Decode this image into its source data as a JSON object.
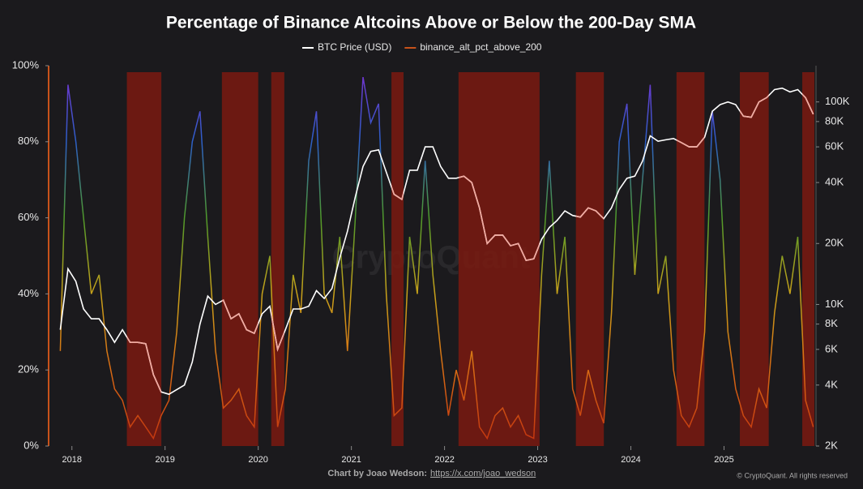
{
  "chart_data": {
    "type": "line",
    "title": "Percentage of Binance Altcoins Above or Below the 200-Day SMA",
    "footer": "Chart by Joao Wedson:",
    "footer_link": "https://x.com/joao_wedson",
    "copyright": "© CryptoQuant. All rights reserved",
    "watermark": "CryptoQuant",
    "legend": "top",
    "x": [
      2017.875,
      2017.958,
      2018.042,
      2018.125,
      2018.208,
      2018.292,
      2018.375,
      2018.458,
      2018.542,
      2018.625,
      2018.708,
      2018.792,
      2018.875,
      2018.958,
      2019.042,
      2019.125,
      2019.208,
      2019.292,
      2019.375,
      2019.458,
      2019.542,
      2019.625,
      2019.708,
      2019.792,
      2019.875,
      2019.958,
      2020.042,
      2020.125,
      2020.208,
      2020.292,
      2020.375,
      2020.458,
      2020.542,
      2020.625,
      2020.708,
      2020.792,
      2020.875,
      2020.958,
      2021.042,
      2021.125,
      2021.208,
      2021.292,
      2021.375,
      2021.458,
      2021.542,
      2021.625,
      2021.708,
      2021.792,
      2021.875,
      2021.958,
      2022.042,
      2022.125,
      2022.208,
      2022.292,
      2022.375,
      2022.458,
      2022.542,
      2022.625,
      2022.708,
      2022.792,
      2022.875,
      2022.958,
      2023.042,
      2023.125,
      2023.208,
      2023.292,
      2023.375,
      2023.458,
      2023.542,
      2023.625,
      2023.708,
      2023.792,
      2023.875,
      2023.958,
      2024.042,
      2024.125,
      2024.208,
      2024.292,
      2024.375,
      2024.458,
      2024.542,
      2024.625,
      2024.708,
      2024.792,
      2024.875,
      2024.958,
      2025.042,
      2025.125,
      2025.208,
      2025.292,
      2025.375,
      2025.458,
      2025.542,
      2025.625,
      2025.708,
      2025.792,
      2025.875,
      2025.958
    ],
    "series": [
      {
        "name": "BTC Price (USD)",
        "color": "#ffffff",
        "shaded_color": "#f2aaa0",
        "axis": "y2",
        "values": [
          7500,
          15000,
          13000,
          9500,
          8500,
          8500,
          7500,
          6500,
          7500,
          6500,
          6500,
          6400,
          4500,
          3700,
          3600,
          3800,
          4000,
          5200,
          8000,
          11000,
          10000,
          10500,
          8500,
          9000,
          7500,
          7200,
          9000,
          9800,
          6000,
          7500,
          9500,
          9500,
          9800,
          11700,
          10700,
          12000,
          17000,
          23000,
          34000,
          48000,
          57000,
          58000,
          45000,
          35000,
          33000,
          46000,
          46000,
          60000,
          60000,
          48000,
          42000,
          42000,
          43000,
          40000,
          30000,
          20000,
          22000,
          22000,
          19500,
          20000,
          16500,
          16800,
          21000,
          24000,
          26000,
          29000,
          27500,
          27000,
          30000,
          29000,
          26500,
          30000,
          37000,
          42000,
          43000,
          51000,
          68000,
          64000,
          65000,
          66000,
          63000,
          60000,
          60000,
          67000,
          90000,
          97000,
          100000,
          97000,
          85000,
          84000,
          100000,
          105000,
          115000,
          117000,
          112000,
          115000,
          105000,
          87000
        ]
      },
      {
        "name": "binance_alt_pct_above_200",
        "color": "#c8521a",
        "colorscale": [
          "#c2320f",
          "#d86a14",
          "#c9a21a",
          "#4f9a2a",
          "#2d5fc9",
          "#7a2fd0"
        ],
        "values": [
          25,
          95,
          80,
          60,
          40,
          45,
          25,
          15,
          12,
          5,
          8,
          5,
          2,
          8,
          12,
          30,
          60,
          80,
          88,
          55,
          25,
          10,
          12,
          15,
          8,
          5,
          40,
          50,
          5,
          15,
          45,
          35,
          75,
          88,
          40,
          35,
          55,
          25,
          60,
          97,
          85,
          90,
          40,
          8,
          10,
          55,
          40,
          75,
          45,
          25,
          8,
          20,
          12,
          25,
          5,
          2,
          8,
          10,
          5,
          8,
          3,
          2,
          45,
          75,
          40,
          55,
          15,
          8,
          20,
          12,
          6,
          35,
          80,
          90,
          45,
          70,
          95,
          40,
          50,
          20,
          8,
          5,
          10,
          30,
          88,
          70,
          30,
          15,
          8,
          5,
          15,
          10,
          35,
          50,
          40,
          55,
          12,
          5
        ]
      }
    ],
    "shaded_ranges": [
      [
        2018.59,
        2018.96
      ],
      [
        2019.61,
        2020.0
      ],
      [
        2020.14,
        2020.28
      ],
      [
        2021.43,
        2021.56
      ],
      [
        2022.15,
        2023.02
      ],
      [
        2023.41,
        2023.71
      ],
      [
        2024.49,
        2024.79
      ],
      [
        2025.17,
        2025.48
      ],
      [
        2025.84,
        2025.97
      ]
    ],
    "shade_color": "#7a1a10",
    "xlim": [
      2017.75,
      2025.97
    ],
    "xticks": [
      2018,
      2019,
      2020,
      2021,
      2022,
      2023,
      2024,
      2025
    ],
    "ylim": [
      0,
      100
    ],
    "yticks": [
      {
        "value": 0,
        "label": "0%"
      },
      {
        "value": 20,
        "label": "20%"
      },
      {
        "value": 40,
        "label": "40%"
      },
      {
        "value": 60,
        "label": "60%"
      },
      {
        "value": 80,
        "label": "80%"
      },
      {
        "value": 100,
        "label": "100%"
      }
    ],
    "y2log": true,
    "y2lim": [
      2000,
      151000
    ],
    "y2ticks": [
      {
        "value": 2000,
        "label": "2K"
      },
      {
        "value": 4000,
        "label": "4K"
      },
      {
        "value": 6000,
        "label": "6K"
      },
      {
        "value": 8000,
        "label": "8K"
      },
      {
        "value": 10000,
        "label": "10K"
      },
      {
        "value": 20000,
        "label": "20K"
      },
      {
        "value": 40000,
        "label": "40K"
      },
      {
        "value": 60000,
        "label": "60K"
      },
      {
        "value": 80000,
        "label": "80K"
      },
      {
        "value": 100000,
        "label": "100K"
      }
    ]
  }
}
